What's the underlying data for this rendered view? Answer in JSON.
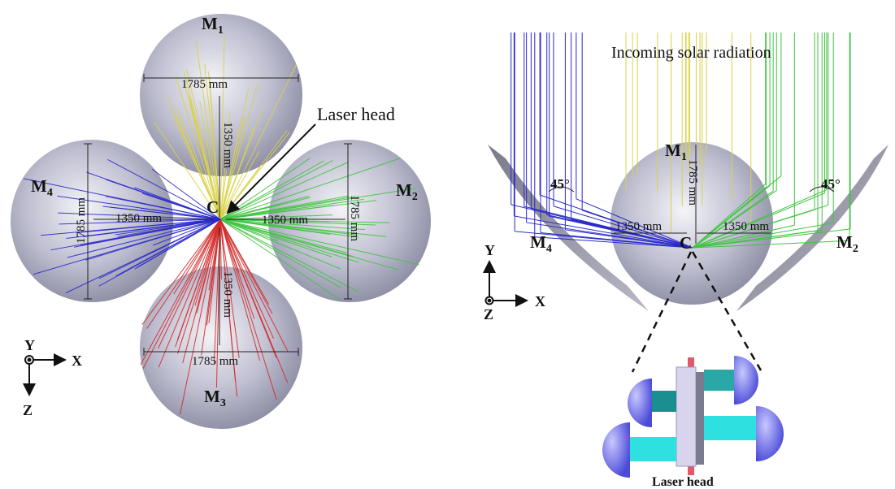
{
  "left_view": {
    "mirrors": [
      {
        "id": "M",
        "sub": "1"
      },
      {
        "id": "M",
        "sub": "2"
      },
      {
        "id": "M",
        "sub": "3"
      },
      {
        "id": "M",
        "sub": "4"
      }
    ],
    "dimensions": [
      "1785 mm",
      "1350 mm",
      "1785 mm",
      "1350 mm",
      "1350 mm",
      "1785 mm",
      "1785 mm",
      "1350 mm"
    ],
    "center_label": "C",
    "laser_head_label": "Laser head",
    "axes": {
      "vertical_out": "Y",
      "horizontal": "X",
      "vertical": "Z"
    }
  },
  "right_view": {
    "title": "Incoming solar radiation",
    "mirrors": [
      {
        "id": "M",
        "sub": "1"
      },
      {
        "id": "M",
        "sub": "2"
      },
      {
        "id": "M",
        "sub": "4"
      }
    ],
    "angles": [
      "45°",
      "45°"
    ],
    "dimensions": [
      "1785 mm",
      "1350 mm",
      "1350 mm"
    ],
    "center_label": "C",
    "axes": {
      "vertical": "Y",
      "horizontal": "X",
      "out": "Z"
    },
    "inset_label": "Laser head"
  },
  "colors": {
    "mirror_fill": "#8f8fa6",
    "ray_yellow": "#d9d24a",
    "ray_green": "#3fc43f",
    "ray_red": "#d42a2a",
    "ray_blue": "#2a2acc",
    "rod_cyan": "#2ee0e0",
    "lamp_blue": "#6a6ae6"
  }
}
